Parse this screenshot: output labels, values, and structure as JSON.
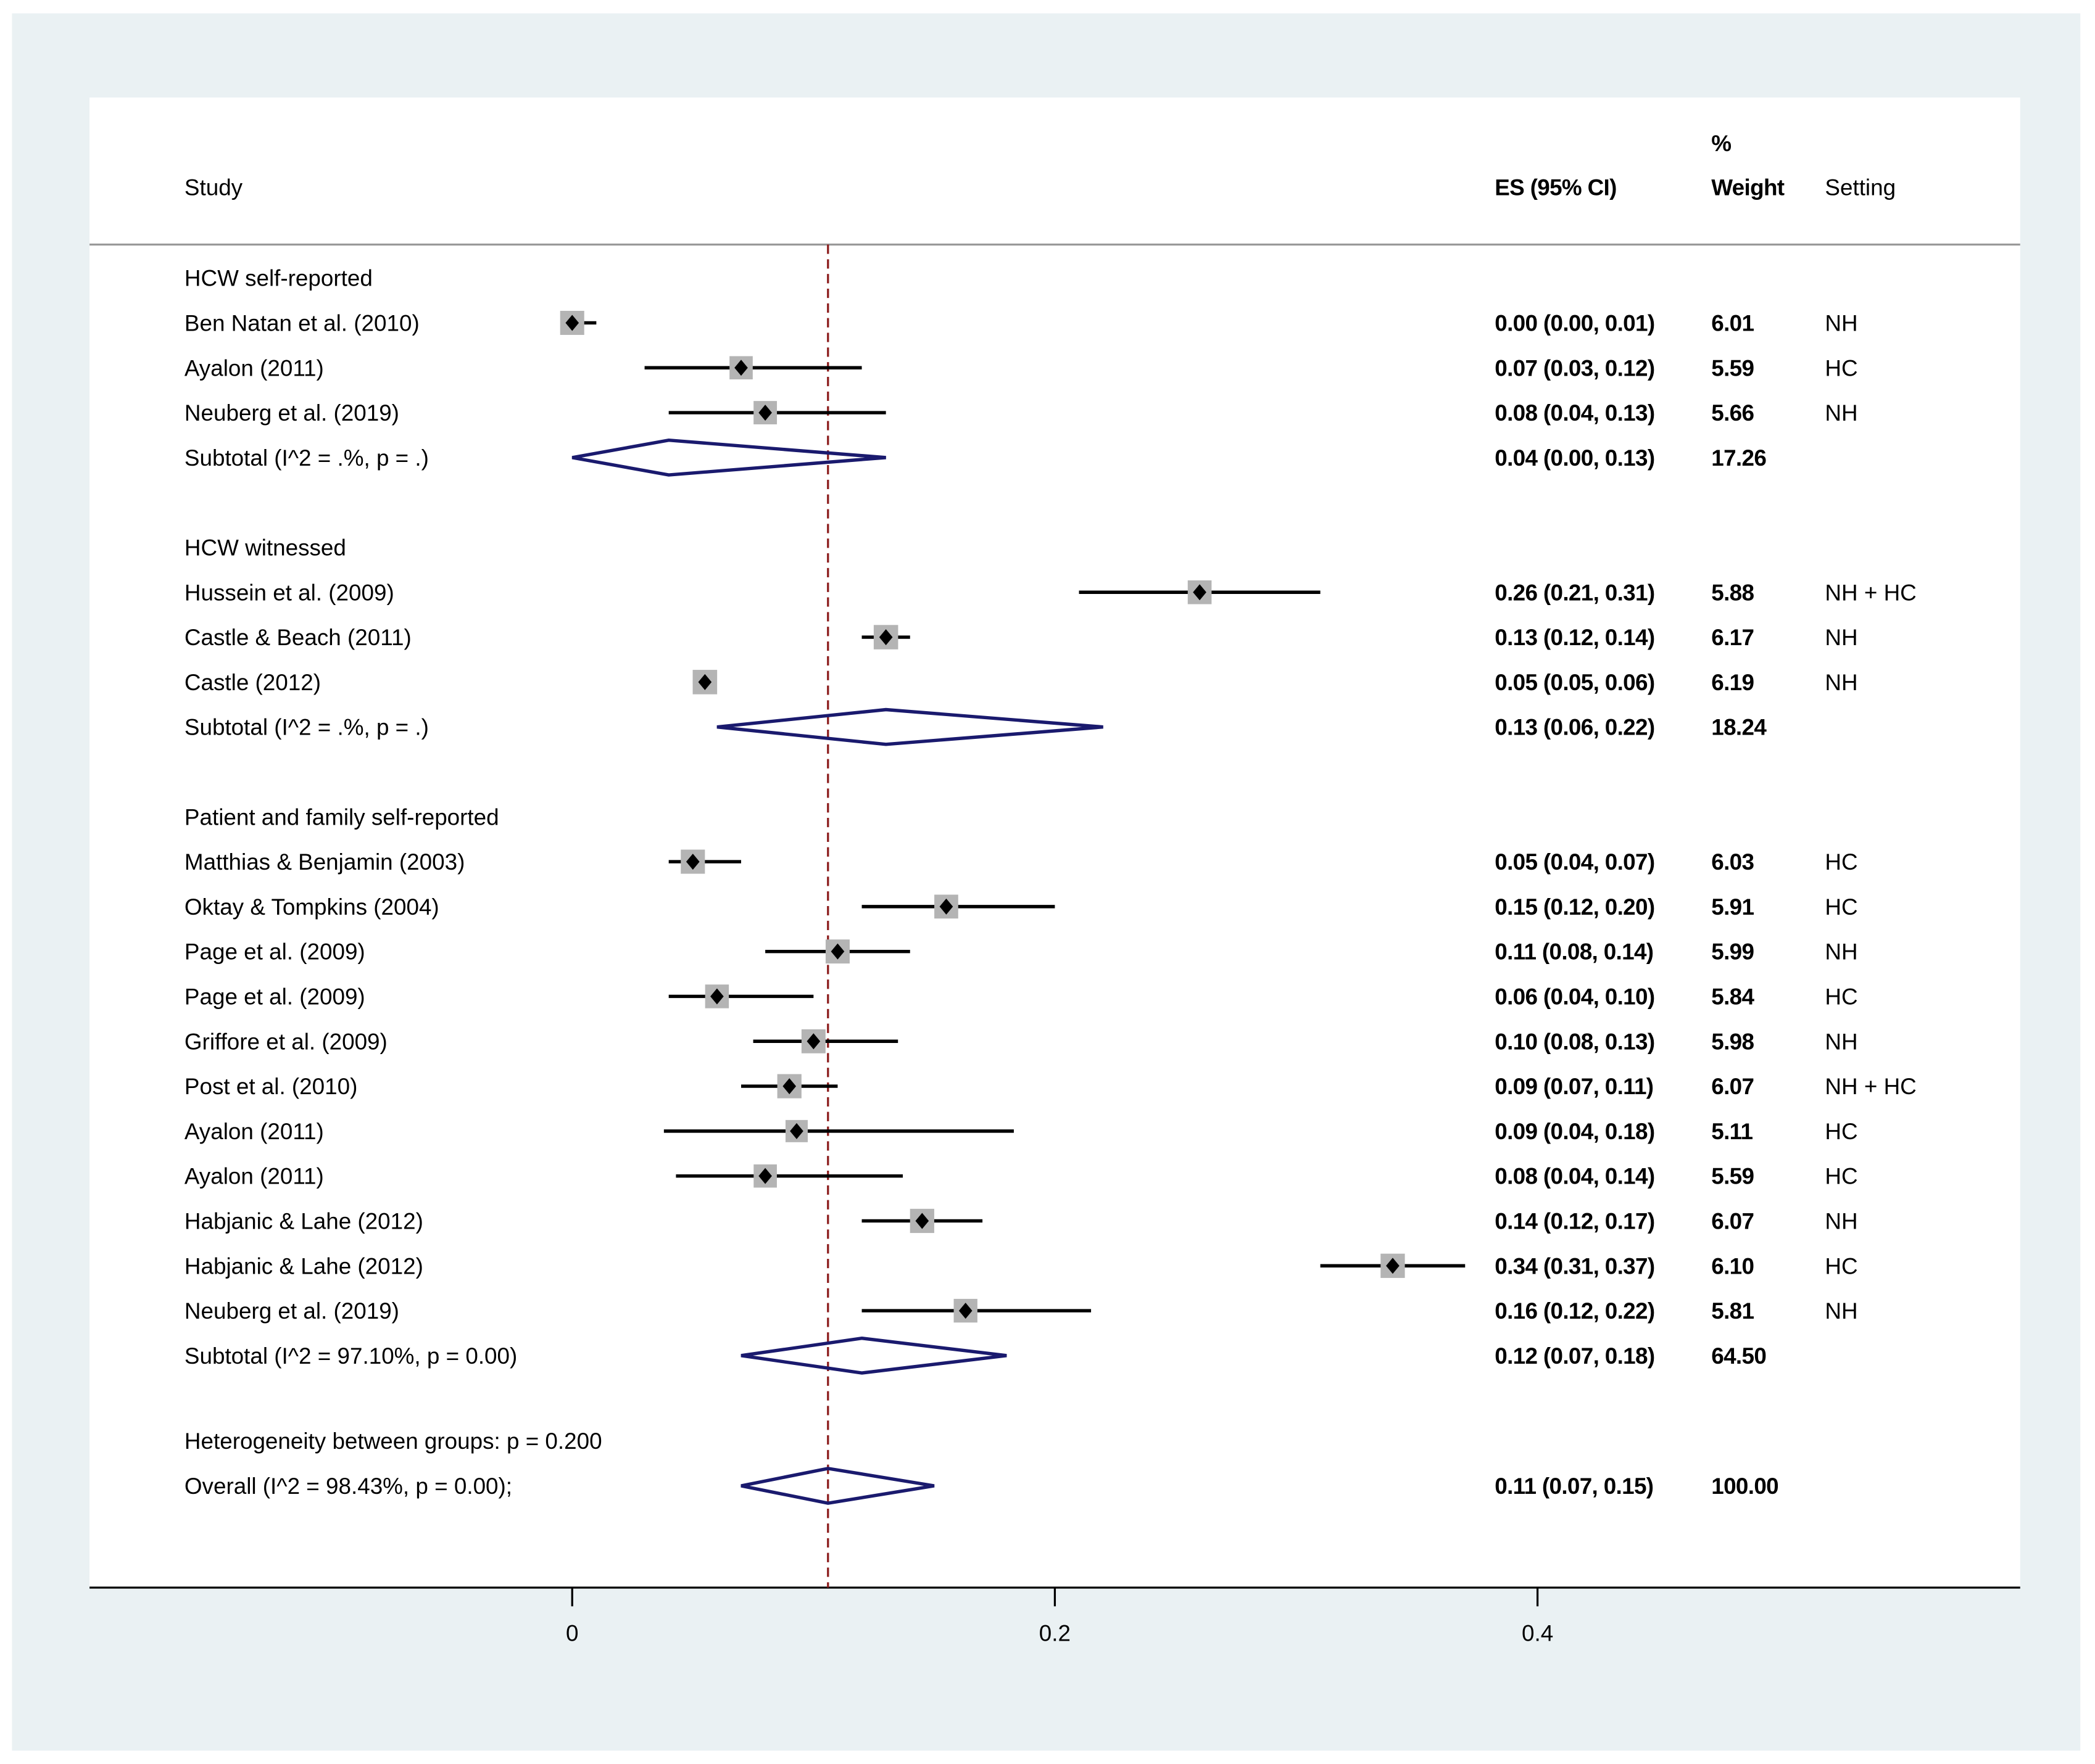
{
  "chart_data": {
    "type": "forest",
    "title": "",
    "xlabel": "",
    "xlim": [
      -0.2,
      0.6
    ],
    "xticks": [
      0,
      0.2,
      0.4
    ],
    "xtick_labels": [
      "0",
      "0.2",
      "0.4"
    ],
    "reference_line": 0.106,
    "colors": {
      "box": "#b4b4b4",
      "point": "#000000",
      "diamond": "#1a1a6e",
      "reference": "#8b1a1a",
      "frame": "#eaf1f3"
    },
    "headers": {
      "study": "Study",
      "es": "ES (95% CI)",
      "weight_top": "%",
      "weight": "Weight",
      "setting": "Setting"
    },
    "groups": [
      {
        "name": "HCW self-reported",
        "studies": [
          {
            "study": "Ben Natan et al. (2010)",
            "es": 0.0,
            "lo": 0.0,
            "hi": 0.01,
            "es_text": "0.00 (0.00, 0.01)",
            "weight": "6.01",
            "setting": "NH"
          },
          {
            "study": "Ayalon (2011)",
            "es": 0.07,
            "lo": 0.03,
            "hi": 0.12,
            "es_text": "0.07 (0.03, 0.12)",
            "weight": "5.59",
            "setting": "HC"
          },
          {
            "study": "Neuberg et al. (2019)",
            "es": 0.08,
            "lo": 0.04,
            "hi": 0.13,
            "es_text": "0.08 (0.04, 0.13)",
            "weight": "5.66",
            "setting": "NH"
          }
        ],
        "subtotal": {
          "label": "Subtotal  (I^2 = .%, p = .)",
          "es": 0.04,
          "lo": 0.0,
          "hi": 0.13,
          "es_text": "0.04 (0.00, 0.13)",
          "weight": "17.26"
        }
      },
      {
        "name": "HCW witnessed",
        "studies": [
          {
            "study": "Hussein et al. (2009)",
            "es": 0.26,
            "lo": 0.21,
            "hi": 0.31,
            "es_text": "0.26 (0.21, 0.31)",
            "weight": "5.88",
            "setting": "NH + HC"
          },
          {
            "study": "Castle & Beach (2011)",
            "es": 0.13,
            "lo": 0.12,
            "hi": 0.14,
            "es_text": "0.13 (0.12, 0.14)",
            "weight": "6.17",
            "setting": "NH"
          },
          {
            "study": "Castle (2012)",
            "es": 0.055,
            "lo": 0.05,
            "hi": 0.06,
            "es_text": "0.05 (0.05, 0.06)",
            "weight": "6.19",
            "setting": "NH"
          }
        ],
        "subtotal": {
          "label": "Subtotal  (I^2 = .%, p = .)",
          "es": 0.13,
          "lo": 0.06,
          "hi": 0.22,
          "es_text": "0.13 (0.06, 0.22)",
          "weight": "18.24"
        }
      },
      {
        "name": "Patient and family self-reported",
        "studies": [
          {
            "study": "Matthias & Benjamin (2003)",
            "es": 0.05,
            "lo": 0.04,
            "hi": 0.07,
            "es_text": "0.05 (0.04, 0.07)",
            "weight": "6.03",
            "setting": "HC"
          },
          {
            "study": "Oktay & Tompkins (2004)",
            "es": 0.155,
            "lo": 0.12,
            "hi": 0.2,
            "es_text": "0.15 (0.12, 0.20)",
            "weight": "5.91",
            "setting": "HC"
          },
          {
            "study": "Page et al. (2009)",
            "es": 0.11,
            "lo": 0.08,
            "hi": 0.14,
            "es_text": "0.11 (0.08, 0.14)",
            "weight": "5.99",
            "setting": "NH"
          },
          {
            "study": "Page et al. (2009)",
            "es": 0.06,
            "lo": 0.04,
            "hi": 0.1,
            "es_text": "0.06 (0.04, 0.10)",
            "weight": "5.84",
            "setting": "HC"
          },
          {
            "study": "Griffore et al. (2009)",
            "es": 0.1,
            "lo": 0.075,
            "hi": 0.135,
            "es_text": "0.10 (0.08, 0.13)",
            "weight": "5.98",
            "setting": "NH"
          },
          {
            "study": "Post et al. (2010)",
            "es": 0.09,
            "lo": 0.07,
            "hi": 0.11,
            "es_text": "0.09 (0.07, 0.11)",
            "weight": "6.07",
            "setting": "NH + HC"
          },
          {
            "study": "Ayalon (2011)",
            "es": 0.093,
            "lo": 0.038,
            "hi": 0.183,
            "es_text": "0.09 (0.04, 0.18)",
            "weight": "5.11",
            "setting": "HC"
          },
          {
            "study": "Ayalon (2011)",
            "es": 0.08,
            "lo": 0.043,
            "hi": 0.137,
            "es_text": "0.08 (0.04, 0.14)",
            "weight": "5.59",
            "setting": "HC"
          },
          {
            "study": "Habjanic & Lahe (2012)",
            "es": 0.145,
            "lo": 0.12,
            "hi": 0.17,
            "es_text": "0.14 (0.12, 0.17)",
            "weight": "6.07",
            "setting": "NH"
          },
          {
            "study": "Habjanic & Lahe (2012)",
            "es": 0.34,
            "lo": 0.31,
            "hi": 0.37,
            "es_text": "0.34 (0.31, 0.37)",
            "weight": "6.10",
            "setting": "HC"
          },
          {
            "study": "Neuberg et al. (2019)",
            "es": 0.163,
            "lo": 0.12,
            "hi": 0.215,
            "es_text": "0.16 (0.12, 0.22)",
            "weight": "5.81",
            "setting": "NH"
          }
        ],
        "subtotal": {
          "label": "Subtotal  (I^2 = 97.10%, p = 0.00)",
          "es": 0.12,
          "lo": 0.07,
          "hi": 0.18,
          "es_text": "0.12 (0.07, 0.18)",
          "weight": "64.50"
        }
      }
    ],
    "heterogeneity": "Heterogeneity between groups: p = 0.200",
    "overall": {
      "label": "Overall  (I^2 = 98.43%, p = 0.00);",
      "es": 0.106,
      "lo": 0.07,
      "hi": 0.15,
      "es_text": "0.11 (0.07, 0.15)",
      "weight": "100.00"
    }
  }
}
